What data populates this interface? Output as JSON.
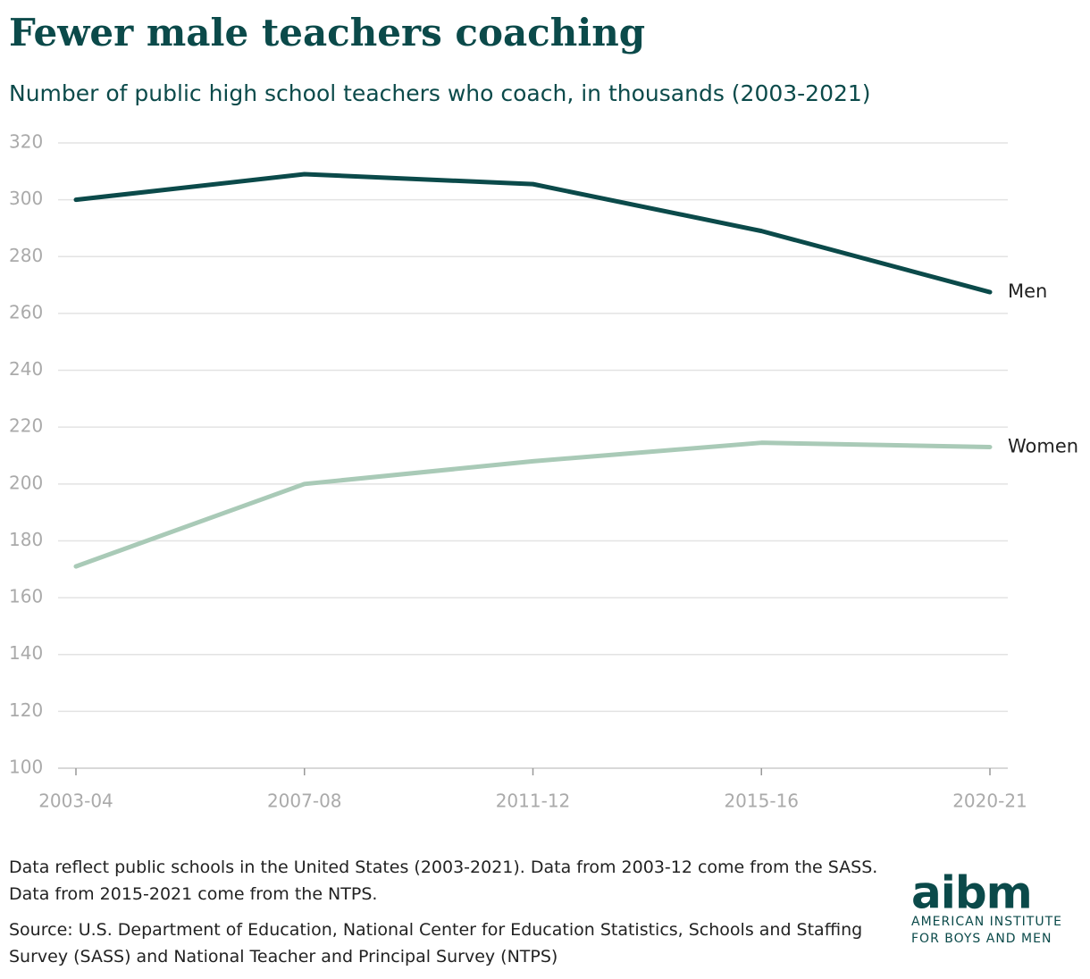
{
  "chart_data": {
    "type": "line",
    "title": "Fewer male teachers coaching",
    "subtitle": "Number of public high school teachers who coach, in thousands (2003-2021)",
    "categories": [
      "2003-04",
      "2007-08",
      "2011-12",
      "2015-16",
      "2020-21"
    ],
    "series": [
      {
        "name": "Men",
        "color": "#0b4a4a",
        "values": [
          300,
          309,
          305.5,
          289,
          267.5
        ]
      },
      {
        "name": "Women",
        "color": "#a9cab7",
        "values": [
          171,
          200,
          208,
          214.5,
          213
        ]
      }
    ],
    "ylim": [
      100,
      320
    ],
    "yticks": [
      100,
      120,
      140,
      160,
      180,
      200,
      220,
      240,
      260,
      280,
      300,
      320
    ],
    "grid": true,
    "note": "Data reflect public schools in the United States (2003-2021). Data from 2003-12 come from the SASS. Data from 2015-2021 come from the NTPS.",
    "source": "Source: U.S. Department of Education, National Center for Education Statistics, Schools and Staffing Survey (SASS) and National Teacher and Principal Survey (NTPS)"
  },
  "logo": {
    "mark": "aibm",
    "line1": "AMERICAN INSTITUTE",
    "line2": "FOR BOYS AND MEN"
  }
}
